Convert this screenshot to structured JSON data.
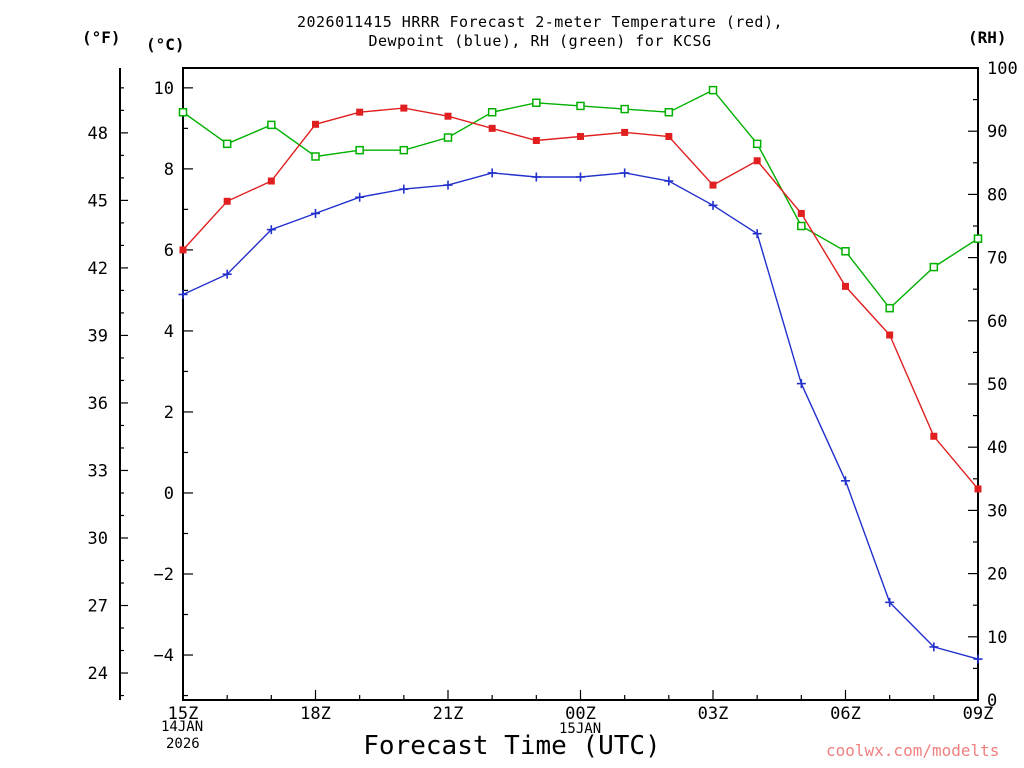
{
  "header": {
    "title_line1": "2026011415 HRRR Forecast 2-meter Temperature (red),",
    "title_line2": "Dewpoint (blue), RH (green) for KCSG"
  },
  "axes": {
    "left_f_label": "(°F)",
    "left_c_label": "(°C)",
    "right_rh_label": "(RH)",
    "f_ticks": [
      24,
      27,
      30,
      33,
      36,
      39,
      42,
      45,
      48
    ],
    "c_ticks": [
      -4,
      -2,
      0,
      2,
      4,
      6,
      8,
      10
    ],
    "rh_ticks": [
      0,
      10,
      20,
      30,
      40,
      50,
      60,
      70,
      80,
      90,
      100
    ],
    "x_tick_labels": [
      "15Z",
      "18Z",
      "21Z",
      "00Z",
      "03Z",
      "06Z",
      "09Z"
    ],
    "xlabel": "Forecast Time (UTC)"
  },
  "annotations": {
    "start_date_line1": "14JAN",
    "start_date_line2": "2026",
    "mid_date": "15JAN",
    "watermark": "coolwx.com/modelts"
  },
  "colors": {
    "temperature": "#e02020",
    "dewpoint": "#2230cc",
    "rh": "#00b000",
    "frame": "#000000",
    "watermark": "#f08080"
  },
  "chart_data": {
    "type": "line",
    "title": "2026011415 HRRR Forecast 2-meter Temperature (red), Dewpoint (blue), RH (green) for KCSG",
    "xlabel": "Forecast Time (UTC)",
    "x_hours_utc": [
      15,
      16,
      17,
      18,
      19,
      20,
      21,
      22,
      23,
      24,
      25,
      26,
      27,
      28,
      29,
      30,
      31,
      32,
      33
    ],
    "x_tick_hours": [
      15,
      18,
      21,
      24,
      27,
      30,
      33
    ],
    "ylim_c": [
      -5.11,
      10.49
    ],
    "ylim_rh": [
      0,
      100
    ],
    "grid": false,
    "legend": "encoded in title colors",
    "series": [
      {
        "name": "2m Temperature (C)",
        "color_key": "temperature",
        "marker": "filled-square",
        "axis": "left",
        "values": [
          6.0,
          7.2,
          7.7,
          9.1,
          9.4,
          9.5,
          9.3,
          9.0,
          8.7,
          8.8,
          8.9,
          8.8,
          7.6,
          8.2,
          6.9,
          5.1,
          3.9,
          1.4,
          0.1
        ]
      },
      {
        "name": "2m Dewpoint (C)",
        "color_key": "dewpoint",
        "marker": "plus",
        "axis": "left",
        "values": [
          4.9,
          5.4,
          6.5,
          6.9,
          7.3,
          7.5,
          7.6,
          7.9,
          7.8,
          7.8,
          7.9,
          7.7,
          7.1,
          6.4,
          2.7,
          0.3,
          -2.7,
          -3.8,
          -4.1
        ]
      },
      {
        "name": "Relative Humidity (%)",
        "color_key": "rh",
        "marker": "open-square",
        "axis": "right",
        "values": [
          93,
          88,
          91,
          86,
          87,
          87,
          89,
          93,
          94.5,
          94,
          93.5,
          93,
          96.5,
          88,
          75,
          71,
          62,
          68.5,
          73
        ]
      }
    ]
  }
}
